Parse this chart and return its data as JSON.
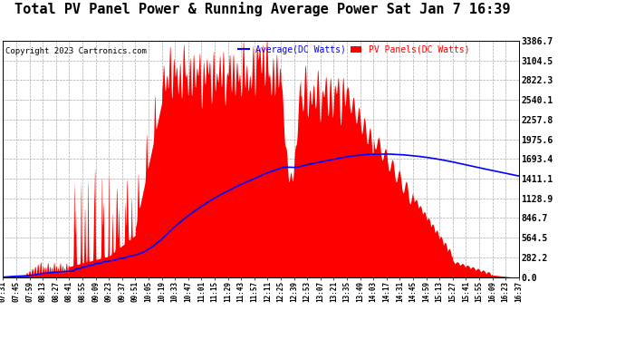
{
  "title": "Total PV Panel Power & Running Average Power Sat Jan 7 16:39",
  "copyright": "Copyright 2023 Cartronics.com",
  "yticks": [
    0.0,
    282.2,
    564.5,
    846.7,
    1128.9,
    1411.1,
    1693.4,
    1975.6,
    2257.8,
    2540.1,
    2822.3,
    3104.5,
    3386.7
  ],
  "ymax": 3386.7,
  "legend_avg_label": "Average(DC Watts)",
  "legend_pv_label": "PV Panels(DC Watts)",
  "legend_avg_color": "blue",
  "legend_pv_color": "red",
  "title_fontsize": 11,
  "copyright_fontsize": 6.5,
  "bg_color": "#ffffff",
  "grid_color": "#aaaaaa",
  "x_ticks": [
    "07:31",
    "07:45",
    "07:59",
    "08:13",
    "08:27",
    "08:41",
    "08:55",
    "09:09",
    "09:23",
    "09:37",
    "09:51",
    "10:05",
    "10:19",
    "10:33",
    "10:47",
    "11:01",
    "11:15",
    "11:29",
    "11:43",
    "11:57",
    "12:11",
    "12:25",
    "12:39",
    "12:53",
    "13:07",
    "13:21",
    "13:35",
    "13:49",
    "14:03",
    "14:17",
    "14:31",
    "14:45",
    "14:59",
    "15:13",
    "15:27",
    "15:41",
    "15:55",
    "16:09",
    "16:23",
    "16:37"
  ]
}
